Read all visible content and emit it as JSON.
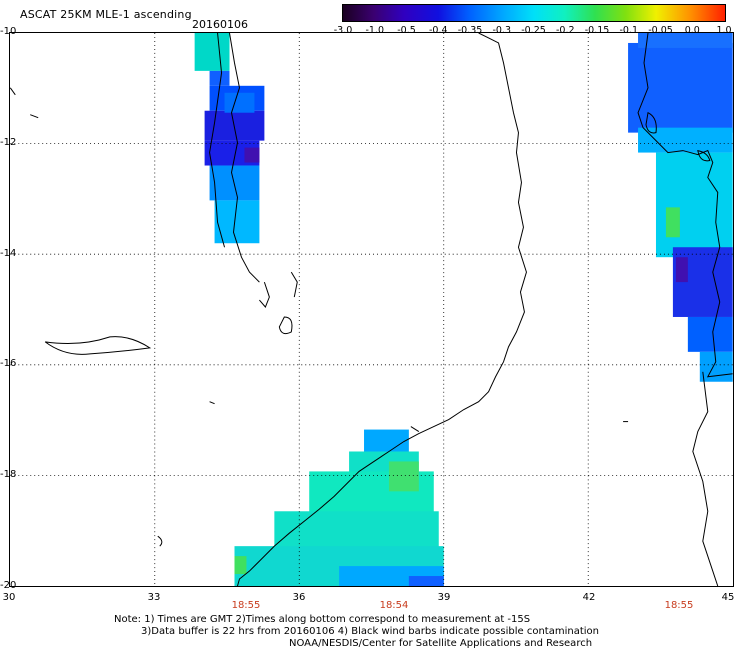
{
  "title": "ASCAT 25KM MLE-1 ascending",
  "date": "20160106",
  "colorbar": {
    "labels": [
      "-3.0",
      "-1.0",
      "-0.5",
      "-0.4",
      "-0.35",
      "-0.3",
      "-0.25",
      "-0.2",
      "-0.15",
      "-0.1",
      "-0.05",
      "0.0",
      "1.0"
    ],
    "colors": [
      "#2a0030",
      "#4b0090",
      "#2020d0",
      "#0048ff",
      "#0080ff",
      "#00b8ff",
      "#00e8f0",
      "#20e8a0",
      "#40e020",
      "#a0e000",
      "#f0e000",
      "#ff9000",
      "#ff3000"
    ]
  },
  "axes": {
    "lat_labels": [
      "-10",
      "-12",
      "-14",
      "-16",
      "-18",
      "-20"
    ],
    "lon_labels": [
      "30",
      "33",
      "36",
      "39",
      "42",
      "45"
    ]
  },
  "times": [
    "18:55",
    "18:54",
    "18:55"
  ],
  "notes": [
    "Note: 1) Times are GMT 2)Times along bottom correspond to measurement at -15S",
    "3)Data buffer is 22 hrs from 20160106 4) Black wind barbs indicate possible contamination",
    "NOAA/NESDIS/Center for Satellite Applications and Research"
  ],
  "legend_colors": {
    "deep_blue": "#1a20e0",
    "blue": "#1060ff",
    "light_blue": "#00a8ff",
    "cyan": "#00d8f0",
    "aqua": "#10e8c0",
    "green": "#40e060",
    "purple": "#4010b0"
  }
}
